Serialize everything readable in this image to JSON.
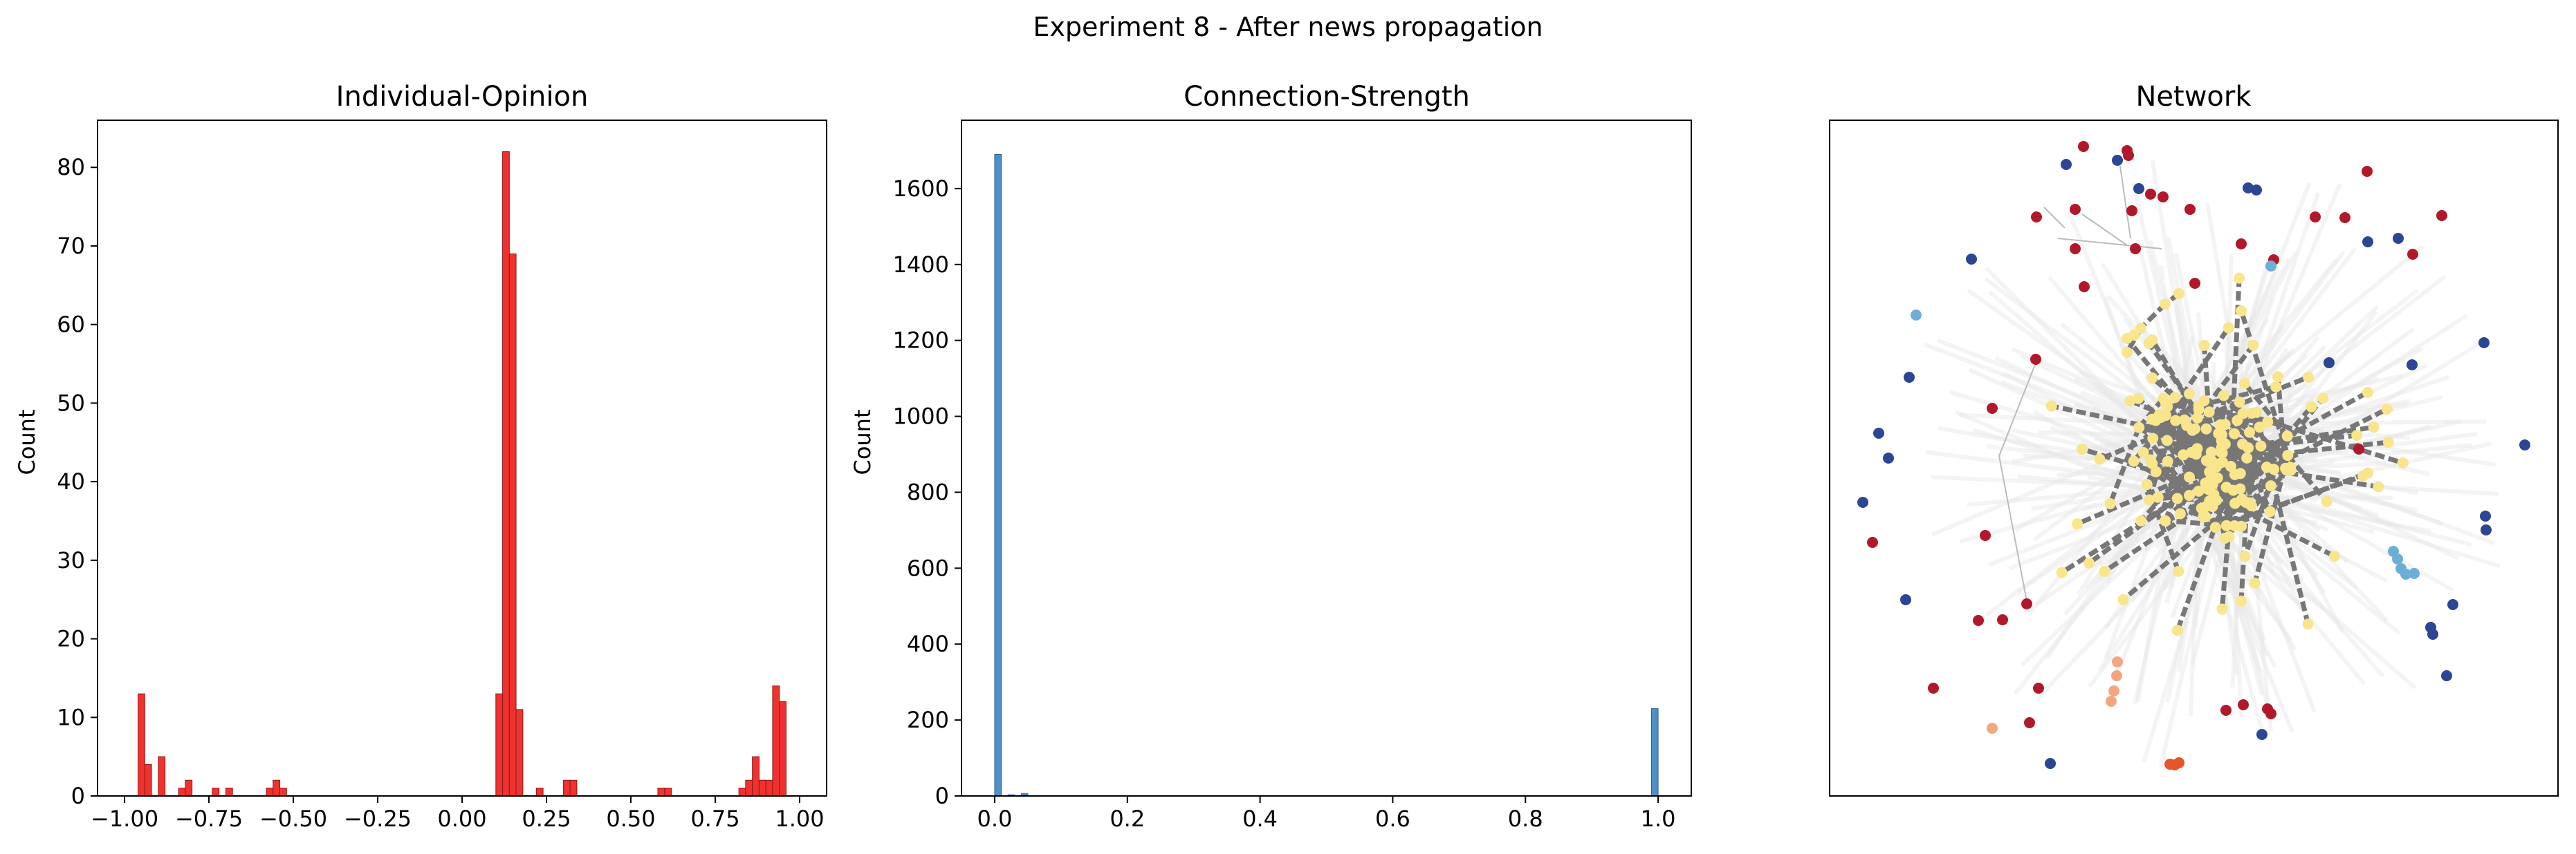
{
  "suptitle": "Experiment 8 - After news propagation",
  "colors": {
    "opinion_bar_fill": "#f0322f",
    "opinion_bar_edge": "#8b1a1a",
    "strength_bar_fill": "#4e8fc7",
    "strength_bar_edge": "#2c5f8a",
    "edge_faint": "#e6e6e6",
    "edge_strong": "#777777",
    "node_yellow": "#f8e58c",
    "node_red": "#b2182b",
    "node_blue": "#2c4595",
    "node_light_blue": "#6baed6",
    "node_orange": "#f4a582",
    "node_dark_orange": "#e6552a"
  },
  "chart_data": [
    {
      "type": "bar",
      "title": "Individual-Opinion",
      "xlabel": "",
      "ylabel": "Count",
      "xlim": [
        -1.08,
        1.08
      ],
      "ylim": [
        0,
        86
      ],
      "xticks": [
        "−1.00",
        "−0.75",
        "−0.50",
        "−0.25",
        "0.00",
        "0.25",
        "0.50",
        "0.75",
        "1.00"
      ],
      "xtick_values": [
        -1.0,
        -0.75,
        -0.5,
        -0.25,
        0.0,
        0.25,
        0.5,
        0.75,
        1.0
      ],
      "yticks": [
        "0",
        "10",
        "20",
        "30",
        "40",
        "50",
        "60",
        "70",
        "80"
      ],
      "ytick_values": [
        0,
        10,
        20,
        30,
        40,
        50,
        60,
        70,
        80
      ],
      "bin_width": 0.02,
      "x": [
        -0.95,
        -0.93,
        -0.89,
        -0.83,
        -0.81,
        -0.73,
        -0.69,
        -0.57,
        -0.55,
        -0.53,
        0.11,
        0.13,
        0.15,
        0.17,
        0.23,
        0.31,
        0.33,
        0.59,
        0.61,
        0.83,
        0.85,
        0.87,
        0.89,
        0.91,
        0.93,
        0.95
      ],
      "values": [
        13,
        4,
        5,
        1,
        2,
        1,
        1,
        1,
        2,
        1,
        13,
        82,
        69,
        11,
        1,
        2,
        2,
        1,
        1,
        1,
        2,
        5,
        2,
        2,
        14,
        12
      ]
    },
    {
      "type": "bar",
      "title": "Connection-Strength",
      "xlabel": "",
      "ylabel": "Count",
      "xlim": [
        -0.05,
        1.05
      ],
      "ylim": [
        0,
        1780
      ],
      "xticks": [
        "0.0",
        "0.2",
        "0.4",
        "0.6",
        "0.8",
        "1.0"
      ],
      "xtick_values": [
        0.0,
        0.2,
        0.4,
        0.6,
        0.8,
        1.0
      ],
      "yticks": [
        "0",
        "200",
        "400",
        "600",
        "800",
        "1000",
        "1200",
        "1400",
        "1600"
      ],
      "ytick_values": [
        0,
        200,
        400,
        600,
        800,
        1000,
        1200,
        1400,
        1600
      ],
      "bin_width": 0.01,
      "x": [
        0.005,
        0.025,
        0.045,
        0.995
      ],
      "values": [
        1690,
        3,
        6,
        230
      ]
    },
    {
      "type": "network",
      "title": "Network",
      "axes_ticks": "none"
    }
  ]
}
